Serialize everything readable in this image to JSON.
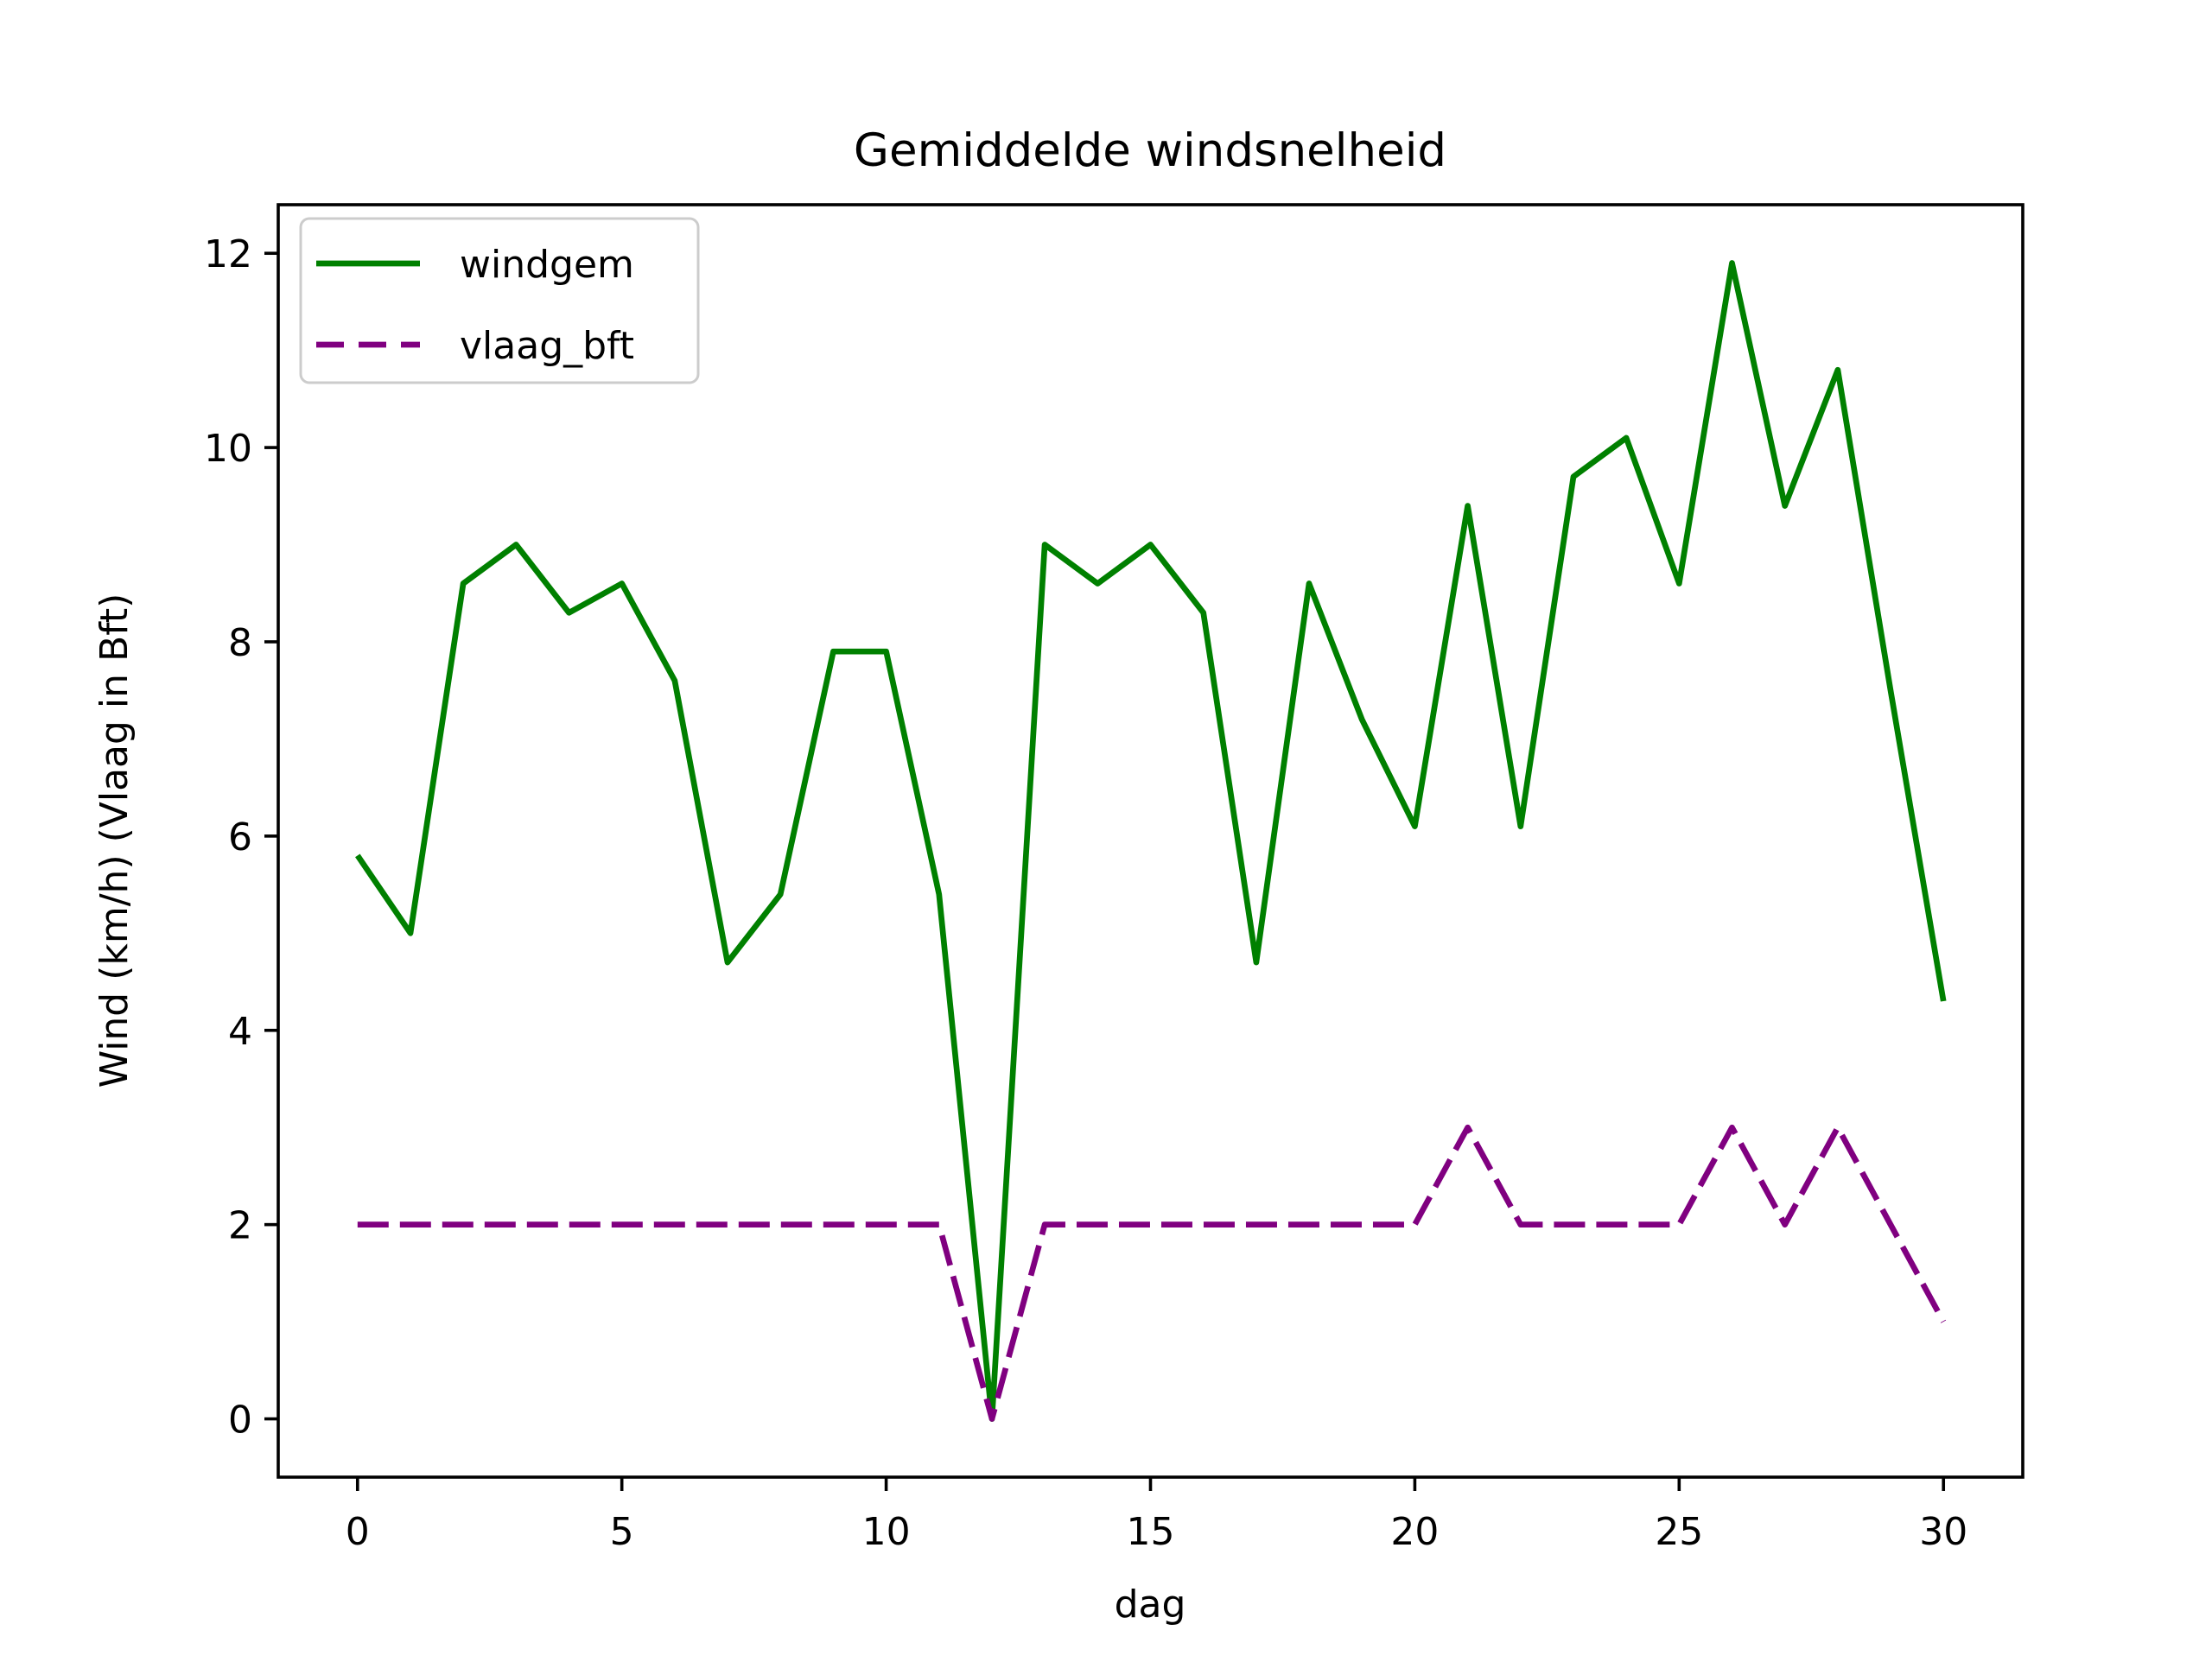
{
  "figure": {
    "title": "Gemiddelde windsnelheid",
    "xlabel": "dag",
    "ylabel": "Wind (km/h) (Vlaag in Bft)",
    "background_color": "#ffffff",
    "spine_color": "#000000"
  },
  "legend": {
    "position": "upper-left",
    "border_color": "#cccccc",
    "entries": [
      {
        "label": "windgem",
        "color": "#008000",
        "style": "solid"
      },
      {
        "label": "vlaag_bft",
        "color": "#800080",
        "style": "dashed"
      }
    ]
  },
  "chart_data": {
    "type": "line",
    "title": "Gemiddelde windsnelheid",
    "xlabel": "dag",
    "ylabel": "Wind (km/h) (Vlaag in Bft)",
    "grid": false,
    "legend_position": "upper-left",
    "x": [
      0,
      1,
      2,
      3,
      4,
      5,
      6,
      7,
      8,
      9,
      10,
      11,
      12,
      13,
      14,
      15,
      16,
      17,
      18,
      19,
      20,
      21,
      22,
      23,
      24,
      25,
      26,
      27,
      28,
      29,
      30
    ],
    "series": [
      {
        "name": "windgem",
        "color": "#008000",
        "style": "solid",
        "values": [
          5.8,
          5.0,
          8.6,
          9.0,
          8.3,
          8.6,
          7.6,
          4.7,
          5.4,
          7.9,
          7.9,
          5.4,
          0.0,
          9.0,
          8.6,
          9.0,
          8.3,
          4.7,
          8.6,
          7.2,
          6.1,
          9.4,
          6.1,
          9.7,
          10.1,
          8.6,
          11.9,
          9.4,
          10.8,
          7.5,
          4.3
        ]
      },
      {
        "name": "vlaag_bft",
        "color": "#800080",
        "style": "dashed",
        "values": [
          2,
          2,
          2,
          2,
          2,
          2,
          2,
          2,
          2,
          2,
          2,
          2,
          0,
          2,
          2,
          2,
          2,
          2,
          2,
          2,
          2,
          3,
          2,
          2,
          2,
          2,
          3,
          2,
          3,
          2,
          1
        ]
      }
    ],
    "xlim": [
      -1.5,
      31.5
    ],
    "ylim": [
      -0.6,
      12.5
    ],
    "x_ticks": [
      0,
      5,
      10,
      15,
      20,
      25,
      30
    ],
    "y_ticks": [
      0,
      2,
      4,
      6,
      8,
      10,
      12
    ]
  }
}
